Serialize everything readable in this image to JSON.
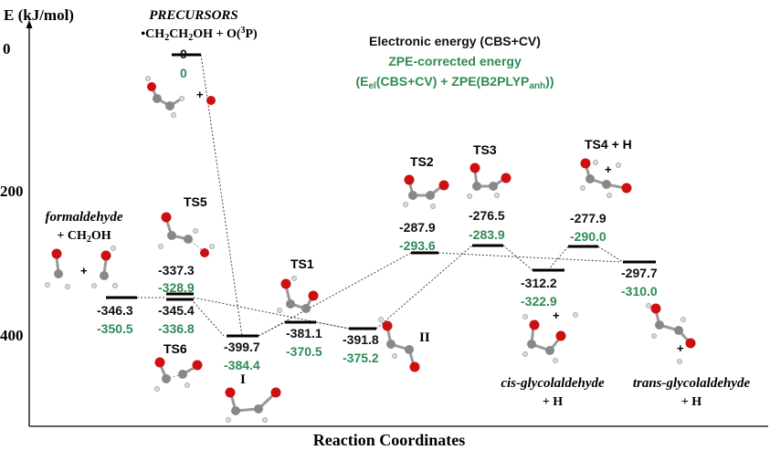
{
  "axis": {
    "y_label": "E (kJ/mol)",
    "y_ticks": [
      "0",
      "200",
      "400"
    ],
    "x_label": "Reaction Coordinates"
  },
  "legend": {
    "electronic": "Electronic energy (CBS+CV)",
    "zpe": "ZPE-corrected energy",
    "formula": "(Eel(CBS+CV) + ZPE(B2PLYPanh))"
  },
  "colors": {
    "electronic": "#111111",
    "zpe": "#2e8b57",
    "atom_o": "#cc1010",
    "atom_c": "#8a8a8a"
  },
  "species": {
    "precursors": {
      "title": "PRECURSORS",
      "formula": "•CH2CH2OH + O(3P)",
      "e": "0",
      "zpe": "0"
    },
    "formaldehyde": {
      "title": "formaldehyde",
      "sub": "+ CH2OH",
      "e": "-346.3",
      "zpe": "-350.5"
    },
    "ts5": {
      "label": "TS5",
      "e": "-337.3",
      "zpe": "-328.9"
    },
    "ts6": {
      "label": "TS6",
      "e": "-345.4",
      "zpe": "-336.8"
    },
    "int1": {
      "label": "I",
      "e": "-399.7",
      "zpe": "-384.4"
    },
    "ts1": {
      "label": "TS1",
      "e": "-381.1",
      "zpe": "-370.5"
    },
    "int2": {
      "label": "II",
      "e": "-391.8",
      "zpe": "-375.2"
    },
    "ts2": {
      "label": "TS2",
      "e": "-287.9",
      "zpe": "-293.6"
    },
    "ts3": {
      "label": "TS3",
      "e": "-276.5",
      "zpe": "-283.9"
    },
    "ts4": {
      "label": "TS4 + H",
      "e": "-277.9",
      "zpe": "-290.0"
    },
    "cis": {
      "title": "cis-glycolaldehyde",
      "sub": "+ H",
      "e": "-312.2",
      "zpe": "-322.9"
    },
    "trans": {
      "title": "trans-glycolaldehyde",
      "sub": "+ H",
      "e": "-297.7",
      "zpe": "-310.0"
    }
  },
  "plus_signs": {
    "p1": "+",
    "p2": "+",
    "p3": "+",
    "p4": "+",
    "p5": "+"
  }
}
